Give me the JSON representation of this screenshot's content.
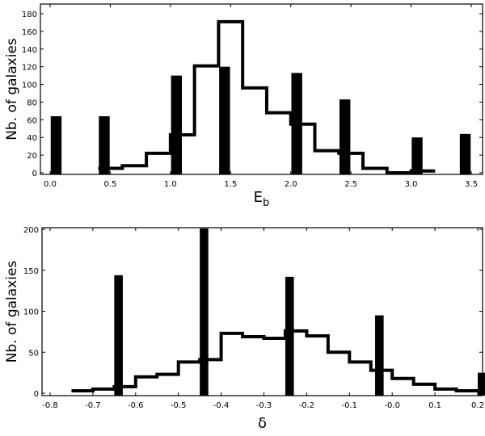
{
  "chart_data": [
    {
      "type": "bar",
      "title": "",
      "xlabel": "E",
      "xlabel_sub": "b",
      "ylabel": "Nb. of galaxies",
      "xlim": [
        -0.05,
        3.55
      ],
      "ylim": [
        0,
        185
      ],
      "xticks": [
        "0.0",
        "0.5",
        "1.0",
        "1.5",
        "2.0",
        "2.5",
        "3.0",
        "3.5"
      ],
      "xtick_values": [
        0,
        0.5,
        1,
        1.5,
        2,
        2.5,
        3,
        3.5
      ],
      "yticks": [
        "0",
        "20",
        "40",
        "60",
        "80",
        "100",
        "120",
        "140",
        "160",
        "180"
      ],
      "ytick_values": [
        0,
        20,
        40,
        60,
        80,
        100,
        120,
        140,
        160,
        180
      ],
      "series": [
        {
          "name": "bars",
          "style": "filled-bar",
          "bar_width": 0.09,
          "x": [
            0.05,
            0.45,
            1.05,
            1.45,
            2.05,
            2.45,
            3.05,
            3.45
          ],
          "values": [
            64,
            64,
            110,
            120,
            113,
            83,
            40,
            44
          ]
        },
        {
          "name": "step",
          "style": "step-outline",
          "bin_edges": [
            0.4,
            0.6,
            0.8,
            1.0,
            1.2,
            1.4,
            1.6,
            1.8,
            2.0,
            2.2,
            2.4,
            2.6,
            2.8,
            3.0,
            3.2
          ],
          "values": [
            5,
            8,
            22,
            43,
            121,
            171,
            96,
            68,
            55,
            25,
            22,
            5,
            0,
            2
          ]
        }
      ]
    },
    {
      "type": "bar",
      "title": "",
      "xlabel": "δ",
      "ylabel": "Nb. of galaxies",
      "xlim": [
        -0.82,
        0.22
      ],
      "ylim": [
        0,
        205
      ],
      "xticks": [
        "-0.8",
        "-0.7",
        "-0.6",
        "-0.5",
        "-0.4",
        "-0.3",
        "-0.2",
        "-0.1",
        "-0.0",
        "0.1",
        "0.2"
      ],
      "xtick_values": [
        -0.8,
        -0.7,
        -0.6,
        -0.5,
        -0.4,
        -0.3,
        -0.2,
        -0.1,
        0,
        0.1,
        0.2
      ],
      "yticks": [
        "0",
        "50",
        "100",
        "150",
        "200"
      ],
      "ytick_values": [
        0,
        50,
        100,
        150,
        200
      ],
      "series": [
        {
          "name": "bars",
          "style": "filled-bar",
          "bar_width": 0.02,
          "x": [
            -0.64,
            -0.44,
            -0.24,
            -0.03,
            0.21
          ],
          "values": [
            144,
            201,
            142,
            95,
            25
          ]
        },
        {
          "name": "step",
          "style": "step-outline",
          "bin_edges": [
            -0.75,
            -0.7,
            -0.65,
            -0.6,
            -0.55,
            -0.5,
            -0.45,
            -0.4,
            -0.35,
            -0.3,
            -0.25,
            -0.2,
            -0.15,
            -0.1,
            -0.05,
            0,
            0.05,
            0.1,
            0.15,
            0.2
          ],
          "values": [
            3,
            5,
            8,
            20,
            23,
            38,
            41,
            73,
            69,
            67,
            76,
            70,
            50,
            38,
            28,
            18,
            11,
            5,
            3
          ]
        }
      ]
    }
  ]
}
